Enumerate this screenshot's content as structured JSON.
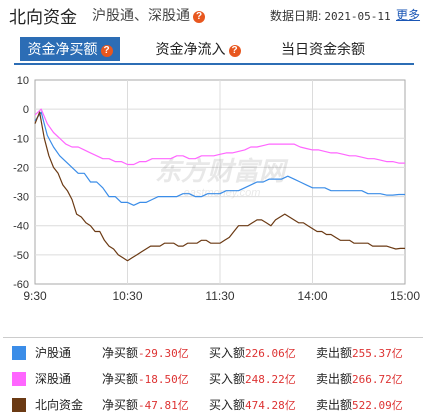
{
  "header": {
    "title": "北向资金",
    "subtitle": "沪股通、深股通",
    "date_label": "数据日期:",
    "date_value": "2021-05-11",
    "more_link": "更多"
  },
  "tabs": [
    {
      "label": "资金净买额",
      "active": true,
      "has_help_icon": true
    },
    {
      "label": "资金净流入",
      "active": false,
      "has_help_icon": true
    },
    {
      "label": "当日资金余额",
      "active": false,
      "has_help_icon": false
    }
  ],
  "watermark": {
    "text": "东方财富网",
    "sub": "eastmoney.com"
  },
  "colors": {
    "hgt": "#3b8de8",
    "sgt": "#ff66ff",
    "north": "#6b3a14",
    "accent": "#2c6db5",
    "negative": "#d33333",
    "help_icon": "#e8571f"
  },
  "chart_data": {
    "type": "line",
    "x_ticks": [
      "9:30",
      "10:30",
      "11:30",
      "14:00",
      "15:00"
    ],
    "y_ticks": [
      10,
      0,
      -10,
      -20,
      -30,
      -40,
      -50,
      -60
    ],
    "ylim": [
      -60,
      10
    ],
    "grid": true,
    "x_points": 240,
    "series": [
      {
        "name": "沪股通",
        "color": "#3b8de8",
        "points": [
          [
            0,
            -4
          ],
          [
            4,
            -1
          ],
          [
            8,
            -9
          ],
          [
            12,
            -13
          ],
          [
            16,
            -16
          ],
          [
            20,
            -18
          ],
          [
            24,
            -20
          ],
          [
            28,
            -22
          ],
          [
            32,
            -22
          ],
          [
            36,
            -25
          ],
          [
            40,
            -25
          ],
          [
            44,
            -27
          ],
          [
            48,
            -30
          ],
          [
            52,
            -30
          ],
          [
            56,
            -32
          ],
          [
            60,
            -32
          ],
          [
            64,
            -33
          ],
          [
            68,
            -32
          ],
          [
            72,
            -32
          ],
          [
            76,
            -31
          ],
          [
            80,
            -30
          ],
          [
            84,
            -30
          ],
          [
            88,
            -30
          ],
          [
            92,
            -30
          ],
          [
            96,
            -29
          ],
          [
            100,
            -29
          ],
          [
            104,
            -30
          ],
          [
            108,
            -30
          ],
          [
            112,
            -29
          ],
          [
            116,
            -29
          ],
          [
            120,
            -29
          ],
          [
            124,
            -28
          ],
          [
            128,
            -28
          ],
          [
            132,
            -28
          ],
          [
            136,
            -27
          ],
          [
            140,
            -26
          ],
          [
            144,
            -25
          ],
          [
            148,
            -25
          ],
          [
            152,
            -24
          ],
          [
            156,
            -24
          ],
          [
            160,
            -24
          ],
          [
            164,
            -23
          ],
          [
            168,
            -24
          ],
          [
            172,
            -25
          ],
          [
            176,
            -26
          ],
          [
            180,
            -27
          ],
          [
            184,
            -27
          ],
          [
            188,
            -27
          ],
          [
            192,
            -28
          ],
          [
            196,
            -28
          ],
          [
            200,
            -28
          ],
          [
            204,
            -28
          ],
          [
            208,
            -28
          ],
          [
            212,
            -28
          ],
          [
            216,
            -29
          ],
          [
            220,
            -29
          ],
          [
            224,
            -29
          ],
          [
            228,
            -29.5
          ],
          [
            232,
            -29.5
          ],
          [
            236,
            -29.3
          ],
          [
            240,
            -29.3
          ]
        ]
      },
      {
        "name": "深股通",
        "color": "#ff66ff",
        "points": [
          [
            0,
            -2
          ],
          [
            4,
            0
          ],
          [
            8,
            -5
          ],
          [
            12,
            -8
          ],
          [
            16,
            -10
          ],
          [
            20,
            -12
          ],
          [
            24,
            -13
          ],
          [
            28,
            -13
          ],
          [
            32,
            -14
          ],
          [
            36,
            -15
          ],
          [
            40,
            -16
          ],
          [
            44,
            -17
          ],
          [
            48,
            -17
          ],
          [
            52,
            -18
          ],
          [
            56,
            -18
          ],
          [
            60,
            -19
          ],
          [
            64,
            -19
          ],
          [
            68,
            -18
          ],
          [
            72,
            -18
          ],
          [
            76,
            -17
          ],
          [
            80,
            -17
          ],
          [
            84,
            -17
          ],
          [
            88,
            -17
          ],
          [
            92,
            -16
          ],
          [
            96,
            -16
          ],
          [
            100,
            -17
          ],
          [
            104,
            -17
          ],
          [
            108,
            -16
          ],
          [
            112,
            -16
          ],
          [
            116,
            -16
          ],
          [
            120,
            -15.5
          ],
          [
            124,
            -15
          ],
          [
            128,
            -15
          ],
          [
            132,
            -14.5
          ],
          [
            136,
            -14
          ],
          [
            140,
            -13
          ],
          [
            144,
            -13
          ],
          [
            148,
            -12.5
          ],
          [
            152,
            -12
          ],
          [
            156,
            -12
          ],
          [
            160,
            -12
          ],
          [
            164,
            -12
          ],
          [
            168,
            -12
          ],
          [
            172,
            -13
          ],
          [
            176,
            -13.5
          ],
          [
            180,
            -14
          ],
          [
            184,
            -14
          ],
          [
            188,
            -14.5
          ],
          [
            192,
            -15
          ],
          [
            196,
            -15
          ],
          [
            200,
            -15.5
          ],
          [
            204,
            -16
          ],
          [
            208,
            -16
          ],
          [
            212,
            -16.5
          ],
          [
            216,
            -17
          ],
          [
            220,
            -17
          ],
          [
            224,
            -17.5
          ],
          [
            228,
            -18
          ],
          [
            232,
            -18
          ],
          [
            236,
            -18.5
          ],
          [
            240,
            -18.5
          ]
        ]
      },
      {
        "name": "北向资金",
        "color": "#6b3a14",
        "points": [
          [
            0,
            -5
          ],
          [
            3,
            -1
          ],
          [
            6,
            -10
          ],
          [
            9,
            -16
          ],
          [
            12,
            -20
          ],
          [
            15,
            -22
          ],
          [
            18,
            -26
          ],
          [
            21,
            -28
          ],
          [
            24,
            -31
          ],
          [
            27,
            -36
          ],
          [
            30,
            -37
          ],
          [
            33,
            -39
          ],
          [
            36,
            -40
          ],
          [
            39,
            -42
          ],
          [
            42,
            -42
          ],
          [
            45,
            -45
          ],
          [
            48,
            -47
          ],
          [
            51,
            -48
          ],
          [
            54,
            -50
          ],
          [
            57,
            -51
          ],
          [
            60,
            -52
          ],
          [
            63,
            -51
          ],
          [
            66,
            -50
          ],
          [
            69,
            -49
          ],
          [
            72,
            -48
          ],
          [
            75,
            -47
          ],
          [
            78,
            -47
          ],
          [
            81,
            -47
          ],
          [
            84,
            -46
          ],
          [
            87,
            -46
          ],
          [
            90,
            -46
          ],
          [
            93,
            -47
          ],
          [
            96,
            -47
          ],
          [
            99,
            -46
          ],
          [
            102,
            -46
          ],
          [
            105,
            -46
          ],
          [
            108,
            -45
          ],
          [
            111,
            -45
          ],
          [
            114,
            -46
          ],
          [
            117,
            -46
          ],
          [
            120,
            -46
          ],
          [
            123,
            -45
          ],
          [
            126,
            -44
          ],
          [
            129,
            -42
          ],
          [
            132,
            -40
          ],
          [
            135,
            -40
          ],
          [
            138,
            -40
          ],
          [
            141,
            -39
          ],
          [
            144,
            -38
          ],
          [
            147,
            -38
          ],
          [
            150,
            -39
          ],
          [
            153,
            -40
          ],
          [
            156,
            -38
          ],
          [
            159,
            -37
          ],
          [
            162,
            -36
          ],
          [
            165,
            -37
          ],
          [
            168,
            -38
          ],
          [
            171,
            -39
          ],
          [
            174,
            -39
          ],
          [
            177,
            -40
          ],
          [
            180,
            -41
          ],
          [
            183,
            -42
          ],
          [
            186,
            -42
          ],
          [
            189,
            -43
          ],
          [
            192,
            -43
          ],
          [
            195,
            -44
          ],
          [
            198,
            -45
          ],
          [
            201,
            -45
          ],
          [
            204,
            -45
          ],
          [
            207,
            -46
          ],
          [
            210,
            -46
          ],
          [
            213,
            -46
          ],
          [
            216,
            -46
          ],
          [
            219,
            -47
          ],
          [
            222,
            -47
          ],
          [
            225,
            -47
          ],
          [
            228,
            -47
          ],
          [
            231,
            -47.5
          ],
          [
            234,
            -48
          ],
          [
            237,
            -47.8
          ],
          [
            240,
            -47.8
          ]
        ]
      }
    ]
  },
  "legend": [
    {
      "name": "沪股通",
      "buy_label": "净买额",
      "net_buy": "-29.30亿",
      "in_label": "买入额",
      "buy_in": "226.06亿",
      "out_label": "卖出额",
      "sell_out": "255.37亿",
      "color": "#3b8de8"
    },
    {
      "name": "深股通",
      "buy_label": "净买额",
      "net_buy": "-18.50亿",
      "in_label": "买入额",
      "buy_in": "248.22亿",
      "out_label": "卖出额",
      "sell_out": "266.72亿",
      "color": "#ff66ff"
    },
    {
      "name": "北向资金",
      "buy_label": "净买额",
      "net_buy": "-47.81亿",
      "in_label": "买入额",
      "buy_in": "474.28亿",
      "out_label": "卖出额",
      "sell_out": "522.09亿",
      "color": "#6b3a14"
    }
  ]
}
